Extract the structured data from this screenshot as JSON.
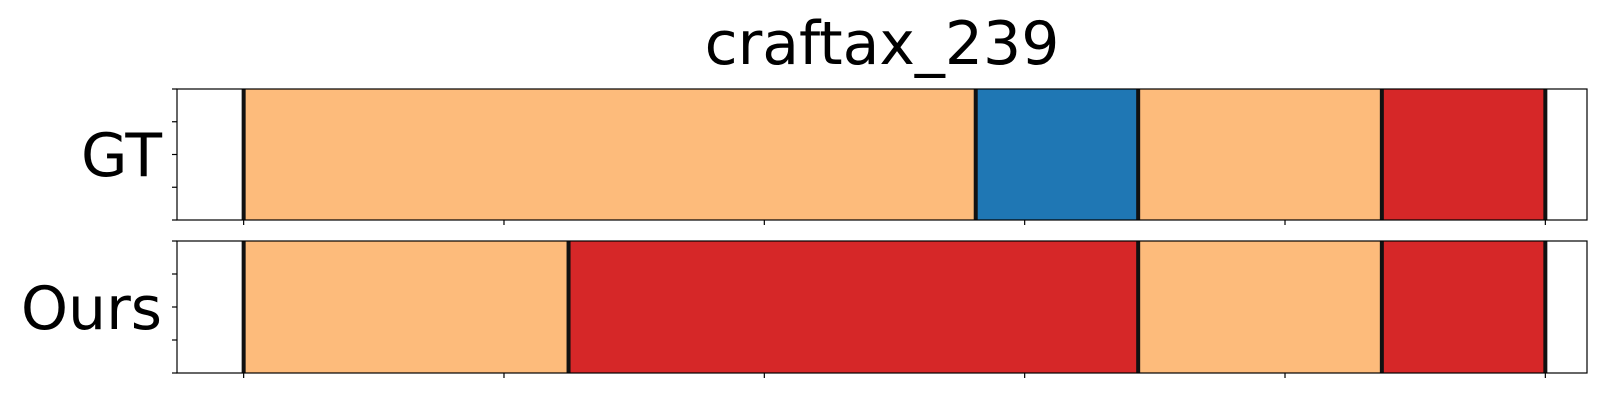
{
  "chart_data": {
    "type": "timeline",
    "title": "craftax_239",
    "xlabel": "",
    "ylabel": "",
    "xlim": [
      -64,
      1290
    ],
    "x_ticks": [
      0,
      250,
      500,
      750,
      1000,
      1250
    ],
    "tick_labels_shown": false,
    "grid": false,
    "rows": [
      {
        "label": "GT",
        "segments": [
          {
            "start": 0,
            "end": 703,
            "color": "#fdbb7b"
          },
          {
            "start": 703,
            "end": 859,
            "color": "#1f77b4"
          },
          {
            "start": 859,
            "end": 1093,
            "color": "#fdbb7b"
          },
          {
            "start": 1093,
            "end": 1250,
            "color": "#d62728"
          }
        ]
      },
      {
        "label": "Ours",
        "segments": [
          {
            "start": 0,
            "end": 312,
            "color": "#fdbb7b"
          },
          {
            "start": 312,
            "end": 859,
            "color": "#d62728"
          },
          {
            "start": 859,
            "end": 1093,
            "color": "#fdbb7b"
          },
          {
            "start": 1093,
            "end": 1250,
            "color": "#d62728"
          }
        ]
      }
    ]
  }
}
